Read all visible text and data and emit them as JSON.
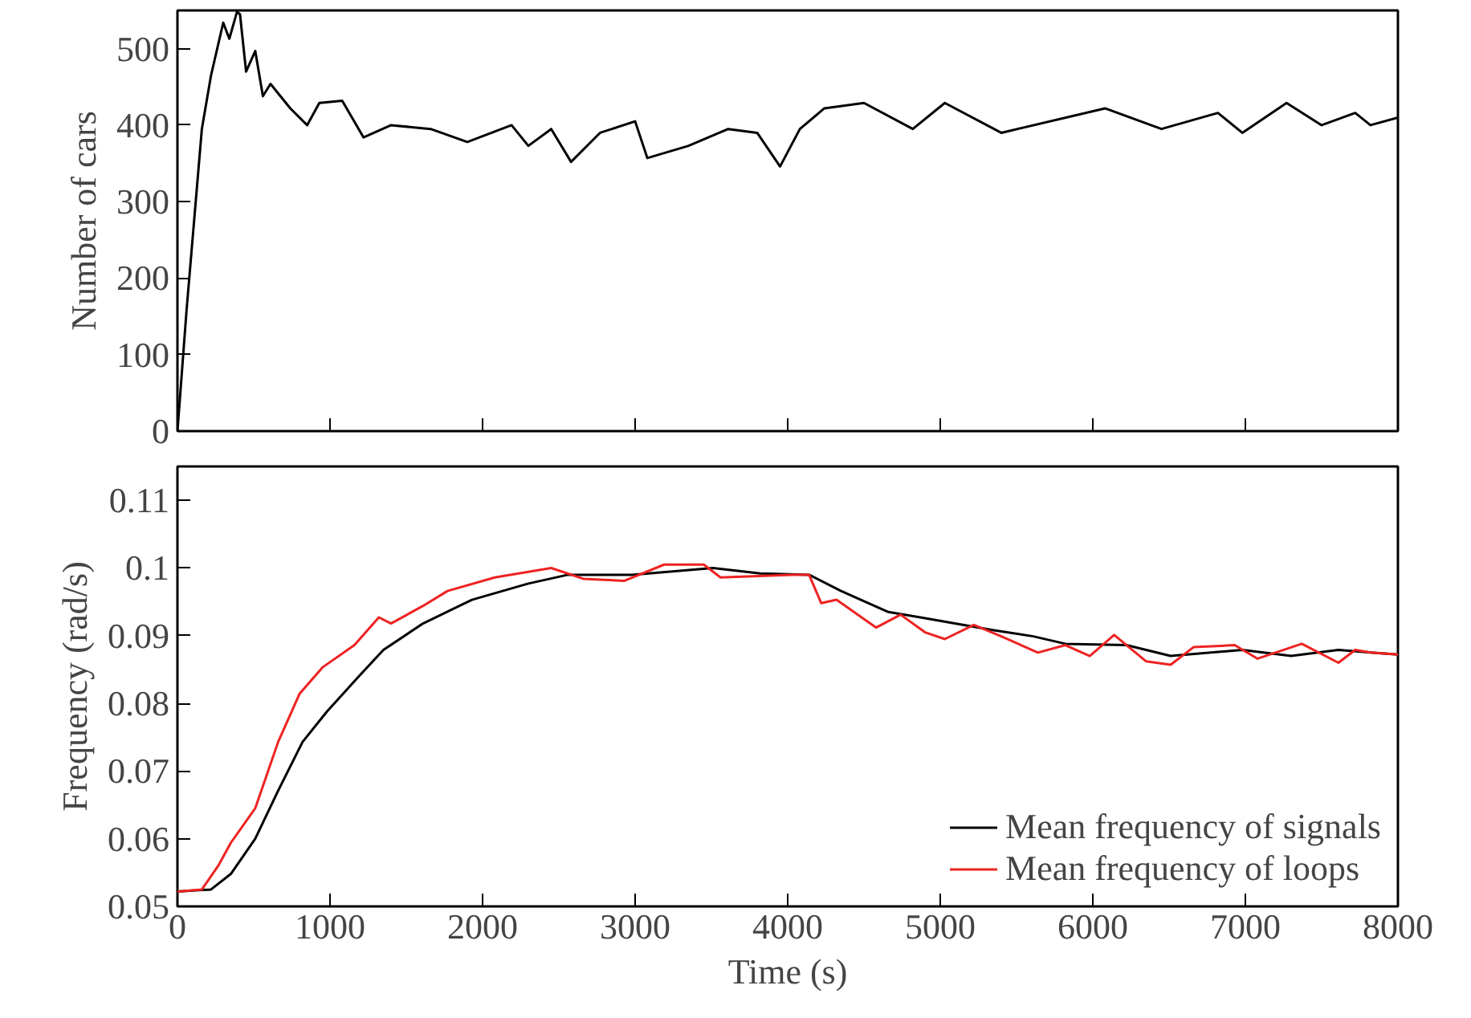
{
  "chart_data": [
    {
      "type": "line",
      "ylabel": "Number of cars",
      "xlim": [
        0,
        8000
      ],
      "xticks": [
        0,
        1000,
        2000,
        3000,
        4000,
        5000,
        6000,
        7000,
        8000
      ],
      "ylim": [
        0,
        550
      ],
      "yticks": [
        0,
        100,
        200,
        300,
        400,
        500
      ],
      "tick_labels": "y",
      "grid": false,
      "legend": false,
      "marker": "none",
      "line_style": "solid",
      "series": [
        {
          "color": "#000000",
          "x": [
            0,
            60,
            160,
            220,
            300,
            340,
            390,
            410,
            450,
            510,
            560,
            610,
            740,
            850,
            930,
            1080,
            1220,
            1400,
            1660,
            1900,
            2190,
            2300,
            2450,
            2580,
            2770,
            3000,
            3080,
            3350,
            3610,
            3800,
            3950,
            4080,
            4240,
            4500,
            4820,
            5030,
            5400,
            6080,
            6450,
            6820,
            6980,
            7270,
            7500,
            7720,
            7820,
            8000
          ],
          "values": [
            0,
            159,
            395,
            465,
            534,
            513,
            548,
            545,
            470,
            497,
            438,
            454,
            422,
            400,
            429,
            432,
            384,
            400,
            395,
            378,
            400,
            373,
            395,
            352,
            390,
            405,
            357,
            373,
            395,
            390,
            346,
            395,
            422,
            429,
            395,
            429,
            390,
            422,
            395,
            416,
            390,
            429,
            400,
            416,
            400,
            410
          ]
        }
      ]
    },
    {
      "type": "line",
      "xlabel": "Time (s)",
      "ylabel": "Frequency (rad/s)",
      "xlim": [
        0,
        8000
      ],
      "xticks": [
        0,
        1000,
        2000,
        3000,
        4000,
        5000,
        6000,
        7000,
        8000
      ],
      "ylim": [
        0.05,
        0.115
      ],
      "yticks": [
        0.05,
        0.06,
        0.07,
        0.08,
        0.09,
        0.1,
        0.11
      ],
      "grid": false,
      "legend": "bottom right",
      "marker": "none",
      "line_style": "solid",
      "series": [
        {
          "name": "Mean frequency of signals",
          "color": "#000000",
          "x": [
            0,
            220,
            350,
            510,
            660,
            820,
            980,
            1190,
            1350,
            1610,
            1930,
            2300,
            2560,
            2980,
            3510,
            3820,
            4140,
            4350,
            4660,
            4870,
            5350,
            5610,
            5820,
            6220,
            6510,
            6980,
            7300,
            7610,
            7820,
            8000
          ],
          "values": [
            0.0522,
            0.0525,
            0.0548,
            0.06,
            0.0671,
            0.0743,
            0.0788,
            0.084,
            0.0879,
            0.0918,
            0.0953,
            0.0977,
            0.099,
            0.099,
            0.1,
            0.0992,
            0.099,
            0.0966,
            0.0935,
            0.0927,
            0.0908,
            0.0899,
            0.0888,
            0.0886,
            0.087,
            0.0879,
            0.087,
            0.0879,
            0.0875,
            0.0872
          ]
        },
        {
          "name": "Mean frequency of loops",
          "color": "#ee2222",
          "x": [
            0,
            160,
            270,
            350,
            510,
            660,
            800,
            950,
            1160,
            1320,
            1400,
            1610,
            1770,
            2080,
            2450,
            2660,
            2930,
            3190,
            3450,
            3560,
            4030,
            4140,
            4220,
            4320,
            4580,
            4740,
            4900,
            5030,
            5220,
            5400,
            5640,
            5820,
            5980,
            6140,
            6350,
            6510,
            6660,
            6930,
            7080,
            7370,
            7610,
            7720,
            7820,
            8000
          ],
          "values": [
            0.0522,
            0.0525,
            0.0561,
            0.0594,
            0.0645,
            0.0743,
            0.0814,
            0.0853,
            0.0886,
            0.0927,
            0.0918,
            0.0944,
            0.0966,
            0.0986,
            0.1,
            0.0984,
            0.0981,
            0.1005,
            0.1005,
            0.0986,
            0.099,
            0.099,
            0.0948,
            0.0953,
            0.0912,
            0.0931,
            0.0905,
            0.0895,
            0.0916,
            0.0899,
            0.0875,
            0.0886,
            0.087,
            0.0901,
            0.0862,
            0.0857,
            0.0883,
            0.0886,
            0.0866,
            0.0888,
            0.086,
            0.0879,
            0.0875,
            0.0872
          ]
        }
      ]
    }
  ]
}
